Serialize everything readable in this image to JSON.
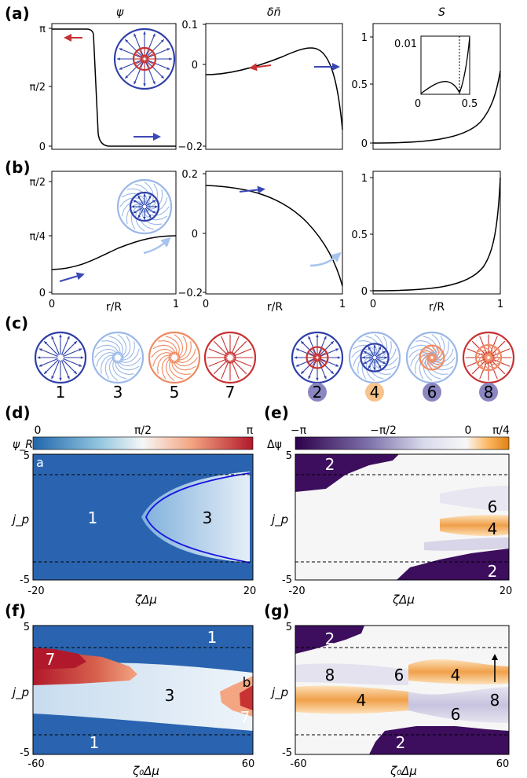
{
  "panel_labels": {
    "a": "(a)",
    "b": "(b)",
    "c": "(c)",
    "d": "(d)",
    "e": "(e)",
    "f": "(f)",
    "g": "(g)"
  },
  "row_a": {
    "titles": {
      "psi": "ψ",
      "dn": "δn̄",
      "s": "S"
    },
    "psi_yticks": [
      "π",
      "π/2",
      "0"
    ],
    "dn_yticks": [
      "0.1",
      "0",
      "−0.2"
    ],
    "s_yticks": [
      "1",
      "0.5",
      "0"
    ],
    "inset": {
      "ytick_top": "0.01",
      "xtick_left": "0",
      "xtick_right": "0.5"
    }
  },
  "row_b": {
    "psi_yticks": [
      "π/2",
      "π/4",
      "0"
    ],
    "dn_yticks": [
      "0.2",
      "0",
      "−0.2"
    ],
    "s_yticks": [
      "1",
      "0.5",
      "0"
    ],
    "xticks": [
      "0",
      "1"
    ],
    "xlabel": "r/R"
  },
  "row_c": {
    "left_numbers": [
      "1",
      "3",
      "5",
      "7"
    ],
    "right_numbers": [
      "2",
      "4",
      "6",
      "8"
    ]
  },
  "maps": {
    "d": {
      "cbar_label": "ψ_R",
      "cbar_ticks": [
        "0",
        "π/2",
        "π"
      ],
      "corner": "a",
      "regions": [
        "1",
        "3"
      ],
      "ylabel": "j_p",
      "yticks": [
        "5",
        "-5"
      ],
      "xticks": [
        "-20",
        "20"
      ],
      "xlabel": "ζΔμ"
    },
    "e": {
      "cbar_label": "Δψ",
      "cbar_ticks": [
        "−π",
        "−π/2",
        "0",
        "π/4"
      ],
      "regions": [
        "2",
        "6",
        "4",
        "2"
      ],
      "ylabel": "j_p",
      "yticks": [
        "5",
        "-5"
      ],
      "xticks": [
        "-20",
        "20"
      ],
      "xlabel": "ζΔμ"
    },
    "f": {
      "regions": [
        "1",
        "7",
        "3",
        "b",
        "7",
        "1"
      ],
      "ylabel": "j_p",
      "yticks": [
        "5",
        "-5"
      ],
      "xticks": [
        "-60",
        "60"
      ],
      "xlabel": "ζ₀Δμ"
    },
    "g": {
      "regions": [
        "2",
        "8",
        "6",
        "4",
        "4",
        "8",
        "6",
        "2"
      ],
      "ylabel": "j_p",
      "yticks": [
        "5",
        "-5"
      ],
      "xticks": [
        "-60",
        "60"
      ],
      "xlabel": "ζ₀Δμ"
    }
  },
  "colors": {
    "dark_blue": "#2e3fa8",
    "light_blue": "#9bb8e8",
    "orange": "#ef8a62",
    "red": "#c83232",
    "purple": "#3d0d5e",
    "orange_band": "#f0a050"
  }
}
